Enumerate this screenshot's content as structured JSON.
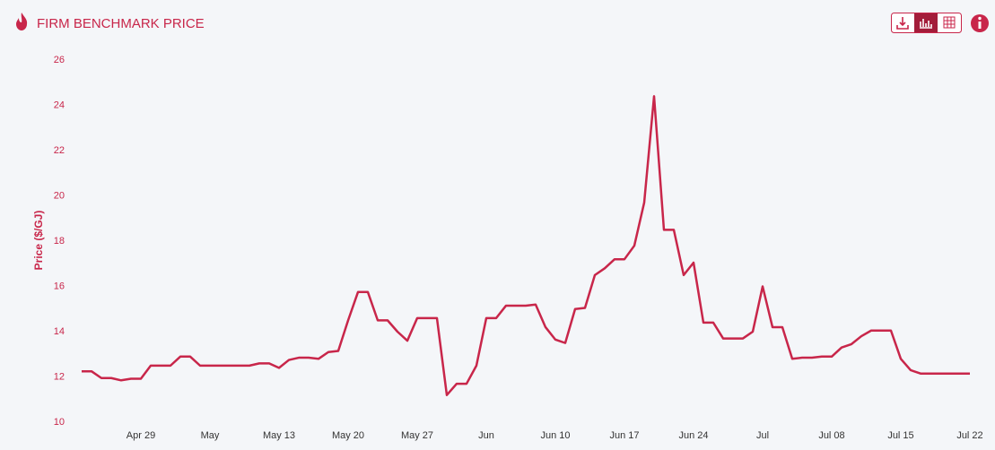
{
  "chart_data": {
    "type": "line",
    "title": "FIRM BENCHMARK PRICE",
    "y_label": "Price ($/GJ)",
    "color": "#c8264a",
    "categories": [
      null,
      null,
      null,
      null,
      null,
      null,
      "Apr 29",
      null,
      null,
      null,
      null,
      null,
      null,
      "May",
      null,
      null,
      null,
      null,
      null,
      null,
      "May 13",
      null,
      null,
      null,
      null,
      null,
      null,
      "May 20",
      null,
      null,
      null,
      null,
      null,
      null,
      "May 27",
      null,
      null,
      null,
      null,
      null,
      null,
      "Jun",
      null,
      null,
      null,
      null,
      null,
      null,
      "Jun 10",
      null,
      null,
      null,
      null,
      null,
      null,
      "Jun 17",
      null,
      null,
      null,
      null,
      null,
      null,
      "Jun 24",
      null,
      null,
      null,
      null,
      null,
      null,
      "Jul",
      null,
      null,
      null,
      null,
      null,
      null,
      "Jul 08",
      null,
      null,
      null,
      null,
      null,
      null,
      "Jul 15",
      null,
      null,
      null,
      null,
      null,
      null,
      "Jul 22"
    ],
    "values": [
      12.25,
      12.25,
      11.95,
      11.95,
      11.85,
      11.92,
      11.92,
      12.5,
      12.5,
      12.5,
      12.9,
      12.9,
      12.5,
      12.5,
      12.5,
      12.5,
      12.5,
      12.5,
      12.6,
      12.6,
      12.4,
      12.75,
      12.85,
      12.85,
      12.8,
      13.1,
      13.15,
      14.5,
      15.75,
      15.75,
      14.5,
      14.5,
      14.0,
      13.6,
      14.6,
      14.6,
      14.6,
      11.2,
      11.7,
      11.7,
      12.5,
      14.6,
      14.6,
      15.15,
      15.15,
      15.15,
      15.2,
      14.2,
      13.65,
      13.5,
      15.0,
      15.05,
      16.5,
      16.8,
      17.2,
      17.2,
      17.8,
      19.7,
      24.4,
      18.5,
      18.5,
      16.5,
      17.05,
      14.4,
      14.4,
      13.7,
      13.7,
      13.7,
      14.0,
      16.0,
      14.2,
      14.2,
      12.8,
      12.85,
      12.85,
      12.9,
      12.9,
      13.3,
      13.45,
      13.8,
      14.05,
      14.05,
      14.05,
      12.8,
      12.3,
      12.15,
      12.15,
      12.15,
      12.15,
      12.15,
      12.15
    ],
    "ylim": [
      10,
      26
    ],
    "yticks": [
      10,
      12,
      14,
      16,
      18,
      20,
      22,
      24,
      26
    ],
    "grid": false
  }
}
